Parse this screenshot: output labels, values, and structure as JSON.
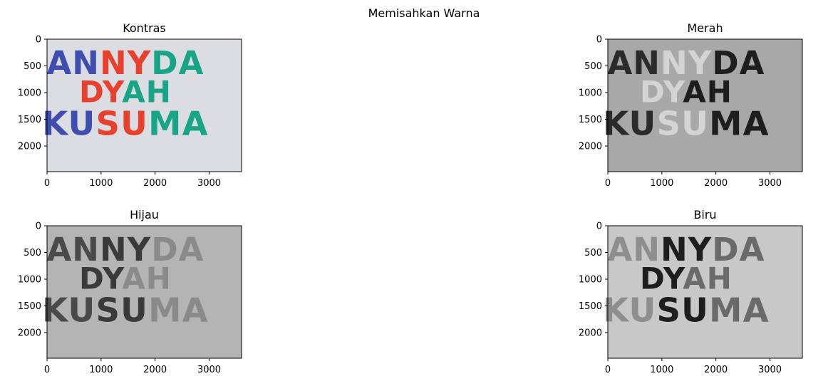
{
  "figure": {
    "suptitle": "Memisahkan Warna"
  },
  "chart_data": [
    {
      "type": "image",
      "title": "Kontras",
      "channel": "color",
      "image_width": 3600,
      "image_height": 2480,
      "xticks": [
        0,
        1000,
        2000,
        3000
      ],
      "yticks": [
        0,
        500,
        1000,
        1500,
        2000
      ],
      "background": "#dcdde3",
      "text_lines": [
        "ANNYDA",
        "DYAH",
        "KUSUMA"
      ],
      "letter_colors": [
        [
          "#3f4db0",
          "#3f4db0",
          "#e8402c",
          "#e8402c",
          "#17a487",
          "#17a487"
        ],
        [
          "#e8402c",
          "#e8402c",
          "#17a487",
          "#17a487"
        ],
        [
          "#3f4db0",
          "#3f4db0",
          "#e8402c",
          "#e8402c",
          "#17a487",
          "#17a487"
        ]
      ]
    },
    {
      "type": "image",
      "title": "Merah",
      "channel": "red",
      "image_width": 3600,
      "image_height": 2480,
      "xticks": [
        0,
        1000,
        2000,
        3000
      ],
      "yticks": [
        0,
        500,
        1000,
        1500,
        2000
      ],
      "background": "#a8a8a8",
      "text_lines": [
        "ANNYDA",
        "DYAH",
        "KUSUMA"
      ],
      "letter_colors": [
        [
          "#2b2b2b",
          "#2b2b2b",
          "#d4d4d4",
          "#d4d4d4",
          "#1e1e1e",
          "#1e1e1e"
        ],
        [
          "#d4d4d4",
          "#d4d4d4",
          "#1e1e1e",
          "#1e1e1e"
        ],
        [
          "#2b2b2b",
          "#2b2b2b",
          "#d4d4d4",
          "#d4d4d4",
          "#1e1e1e",
          "#1e1e1e"
        ]
      ]
    },
    {
      "type": "image",
      "title": "Hijau",
      "channel": "green",
      "image_width": 3600,
      "image_height": 2480,
      "xticks": [
        0,
        1000,
        2000,
        3000
      ],
      "yticks": [
        0,
        500,
        1000,
        1500,
        2000
      ],
      "background": "#b4b4b4",
      "text_lines": [
        "ANNYDA",
        "DYAH",
        "KUSUMA"
      ],
      "letter_colors": [
        [
          "#4a4a4a",
          "#4a4a4a",
          "#3a3a3a",
          "#3a3a3a",
          "#8a8a8a",
          "#8a8a8a"
        ],
        [
          "#3a3a3a",
          "#3a3a3a",
          "#8a8a8a",
          "#8a8a8a"
        ],
        [
          "#4a4a4a",
          "#4a4a4a",
          "#3a3a3a",
          "#3a3a3a",
          "#8a8a8a",
          "#8a8a8a"
        ]
      ]
    },
    {
      "type": "image",
      "title": "Biru",
      "channel": "blue",
      "image_width": 3600,
      "image_height": 2480,
      "xticks": [
        0,
        1000,
        2000,
        3000
      ],
      "yticks": [
        0,
        500,
        1000,
        1500,
        2000
      ],
      "background": "#c8c8c8",
      "text_lines": [
        "ANNYDA",
        "DYAH",
        "KUSUMA"
      ],
      "letter_colors": [
        [
          "#8e8e8e",
          "#8e8e8e",
          "#1e1e1e",
          "#1e1e1e",
          "#6a6a6a",
          "#6a6a6a"
        ],
        [
          "#1e1e1e",
          "#1e1e1e",
          "#6a6a6a",
          "#6a6a6a"
        ],
        [
          "#8e8e8e",
          "#8e8e8e",
          "#1e1e1e",
          "#1e1e1e",
          "#6a6a6a",
          "#6a6a6a"
        ]
      ]
    }
  ]
}
